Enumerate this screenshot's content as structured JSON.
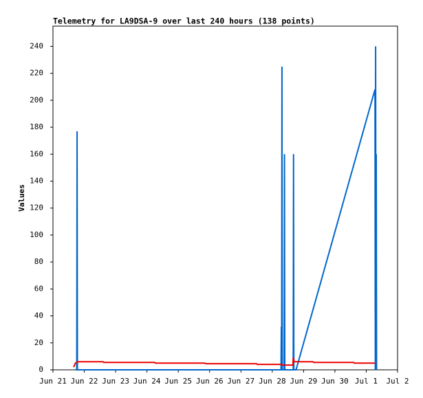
{
  "chart_data": {
    "type": "line",
    "title": "Telemetry for LA9DSA-9 over last 240 hours (138 points)",
    "y_label": "Values",
    "xlim": [
      0,
      11
    ],
    "xticks": [
      {
        "value": 0,
        "label": "Jun 21"
      },
      {
        "value": 1,
        "label": "Jun 22"
      },
      {
        "value": 2,
        "label": "Jun 23"
      },
      {
        "value": 3,
        "label": "Jun 24"
      },
      {
        "value": 4,
        "label": "Jun 25"
      },
      {
        "value": 5,
        "label": "Jun 26"
      },
      {
        "value": 6,
        "label": "Jun 27"
      },
      {
        "value": 7,
        "label": "Jun 28"
      },
      {
        "value": 8,
        "label": "Jun 29"
      },
      {
        "value": 9,
        "label": "Jun 30"
      },
      {
        "value": 10,
        "label": "Jul 1"
      },
      {
        "value": 11,
        "label": "Jul 2"
      }
    ],
    "ylim": [
      0,
      255
    ],
    "yticks": [
      0,
      20,
      40,
      60,
      80,
      100,
      120,
      140,
      160,
      180,
      200,
      220,
      240
    ],
    "series": [
      {
        "color": "#0066cc",
        "x": [
          0.72,
          0.76,
          0.77,
          0.78,
          7.28,
          7.29,
          7.3,
          7.31,
          7.32,
          7.38,
          7.39,
          7.4,
          7.67,
          7.68,
          7.69,
          7.76,
          10.28,
          10.29,
          10.3,
          10.31,
          10.32,
          10.33
        ],
        "values": [
          0,
          0,
          177,
          0,
          0,
          32,
          0,
          225,
          0,
          0,
          160,
          0,
          0,
          160,
          0,
          0,
          208,
          0,
          240,
          0,
          160,
          0
        ]
      },
      {
        "color": "#ee0000",
        "x": [
          0.66,
          0.72,
          0.78,
          1.6,
          1.62,
          3.25,
          3.27,
          4.85,
          4.87,
          6.5,
          6.52,
          7.3,
          7.32,
          7.66,
          7.67,
          7.7,
          8.3,
          8.32,
          9.6,
          9.62,
          10.28
        ],
        "values": [
          2,
          5,
          6,
          6,
          5.5,
          5.5,
          5,
          5,
          4.5,
          4.5,
          4,
          4,
          3.5,
          3.5,
          9,
          6,
          6,
          5.5,
          5.5,
          5,
          5
        ]
      }
    ]
  }
}
